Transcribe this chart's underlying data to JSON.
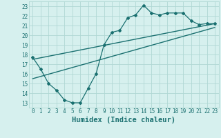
{
  "xlabel": "Humidex (Indice chaleur)",
  "ylabel": "",
  "xlim": [
    -0.5,
    23.5
  ],
  "ylim": [
    12.5,
    23.5
  ],
  "xticks": [
    0,
    1,
    2,
    3,
    4,
    5,
    6,
    7,
    8,
    9,
    10,
    11,
    12,
    13,
    14,
    15,
    16,
    17,
    18,
    19,
    20,
    21,
    22,
    23
  ],
  "yticks": [
    13,
    14,
    15,
    16,
    17,
    18,
    19,
    20,
    21,
    22,
    23
  ],
  "bg_color": "#d6f0ee",
  "grid_color": "#b0d8d4",
  "line_color": "#1a7070",
  "zigzag_x": [
    0,
    1,
    2,
    3,
    4,
    5,
    6,
    7,
    8,
    9,
    10,
    11,
    12,
    13,
    14,
    15,
    16,
    17,
    18,
    19,
    20,
    21,
    22,
    23
  ],
  "zigzag_y": [
    17.7,
    16.5,
    15.0,
    14.3,
    13.3,
    13.0,
    13.0,
    14.5,
    16.0,
    19.0,
    20.3,
    20.5,
    21.8,
    22.1,
    23.1,
    22.3,
    22.1,
    22.3,
    22.3,
    22.3,
    21.5,
    21.1,
    21.2,
    21.2
  ],
  "upper_line_x": [
    0,
    23
  ],
  "upper_line_y": [
    17.5,
    21.2
  ],
  "lower_line_x": [
    0,
    23
  ],
  "lower_line_y": [
    15.5,
    20.8
  ],
  "tick_fontsize": 5.5,
  "label_fontsize": 7.5
}
